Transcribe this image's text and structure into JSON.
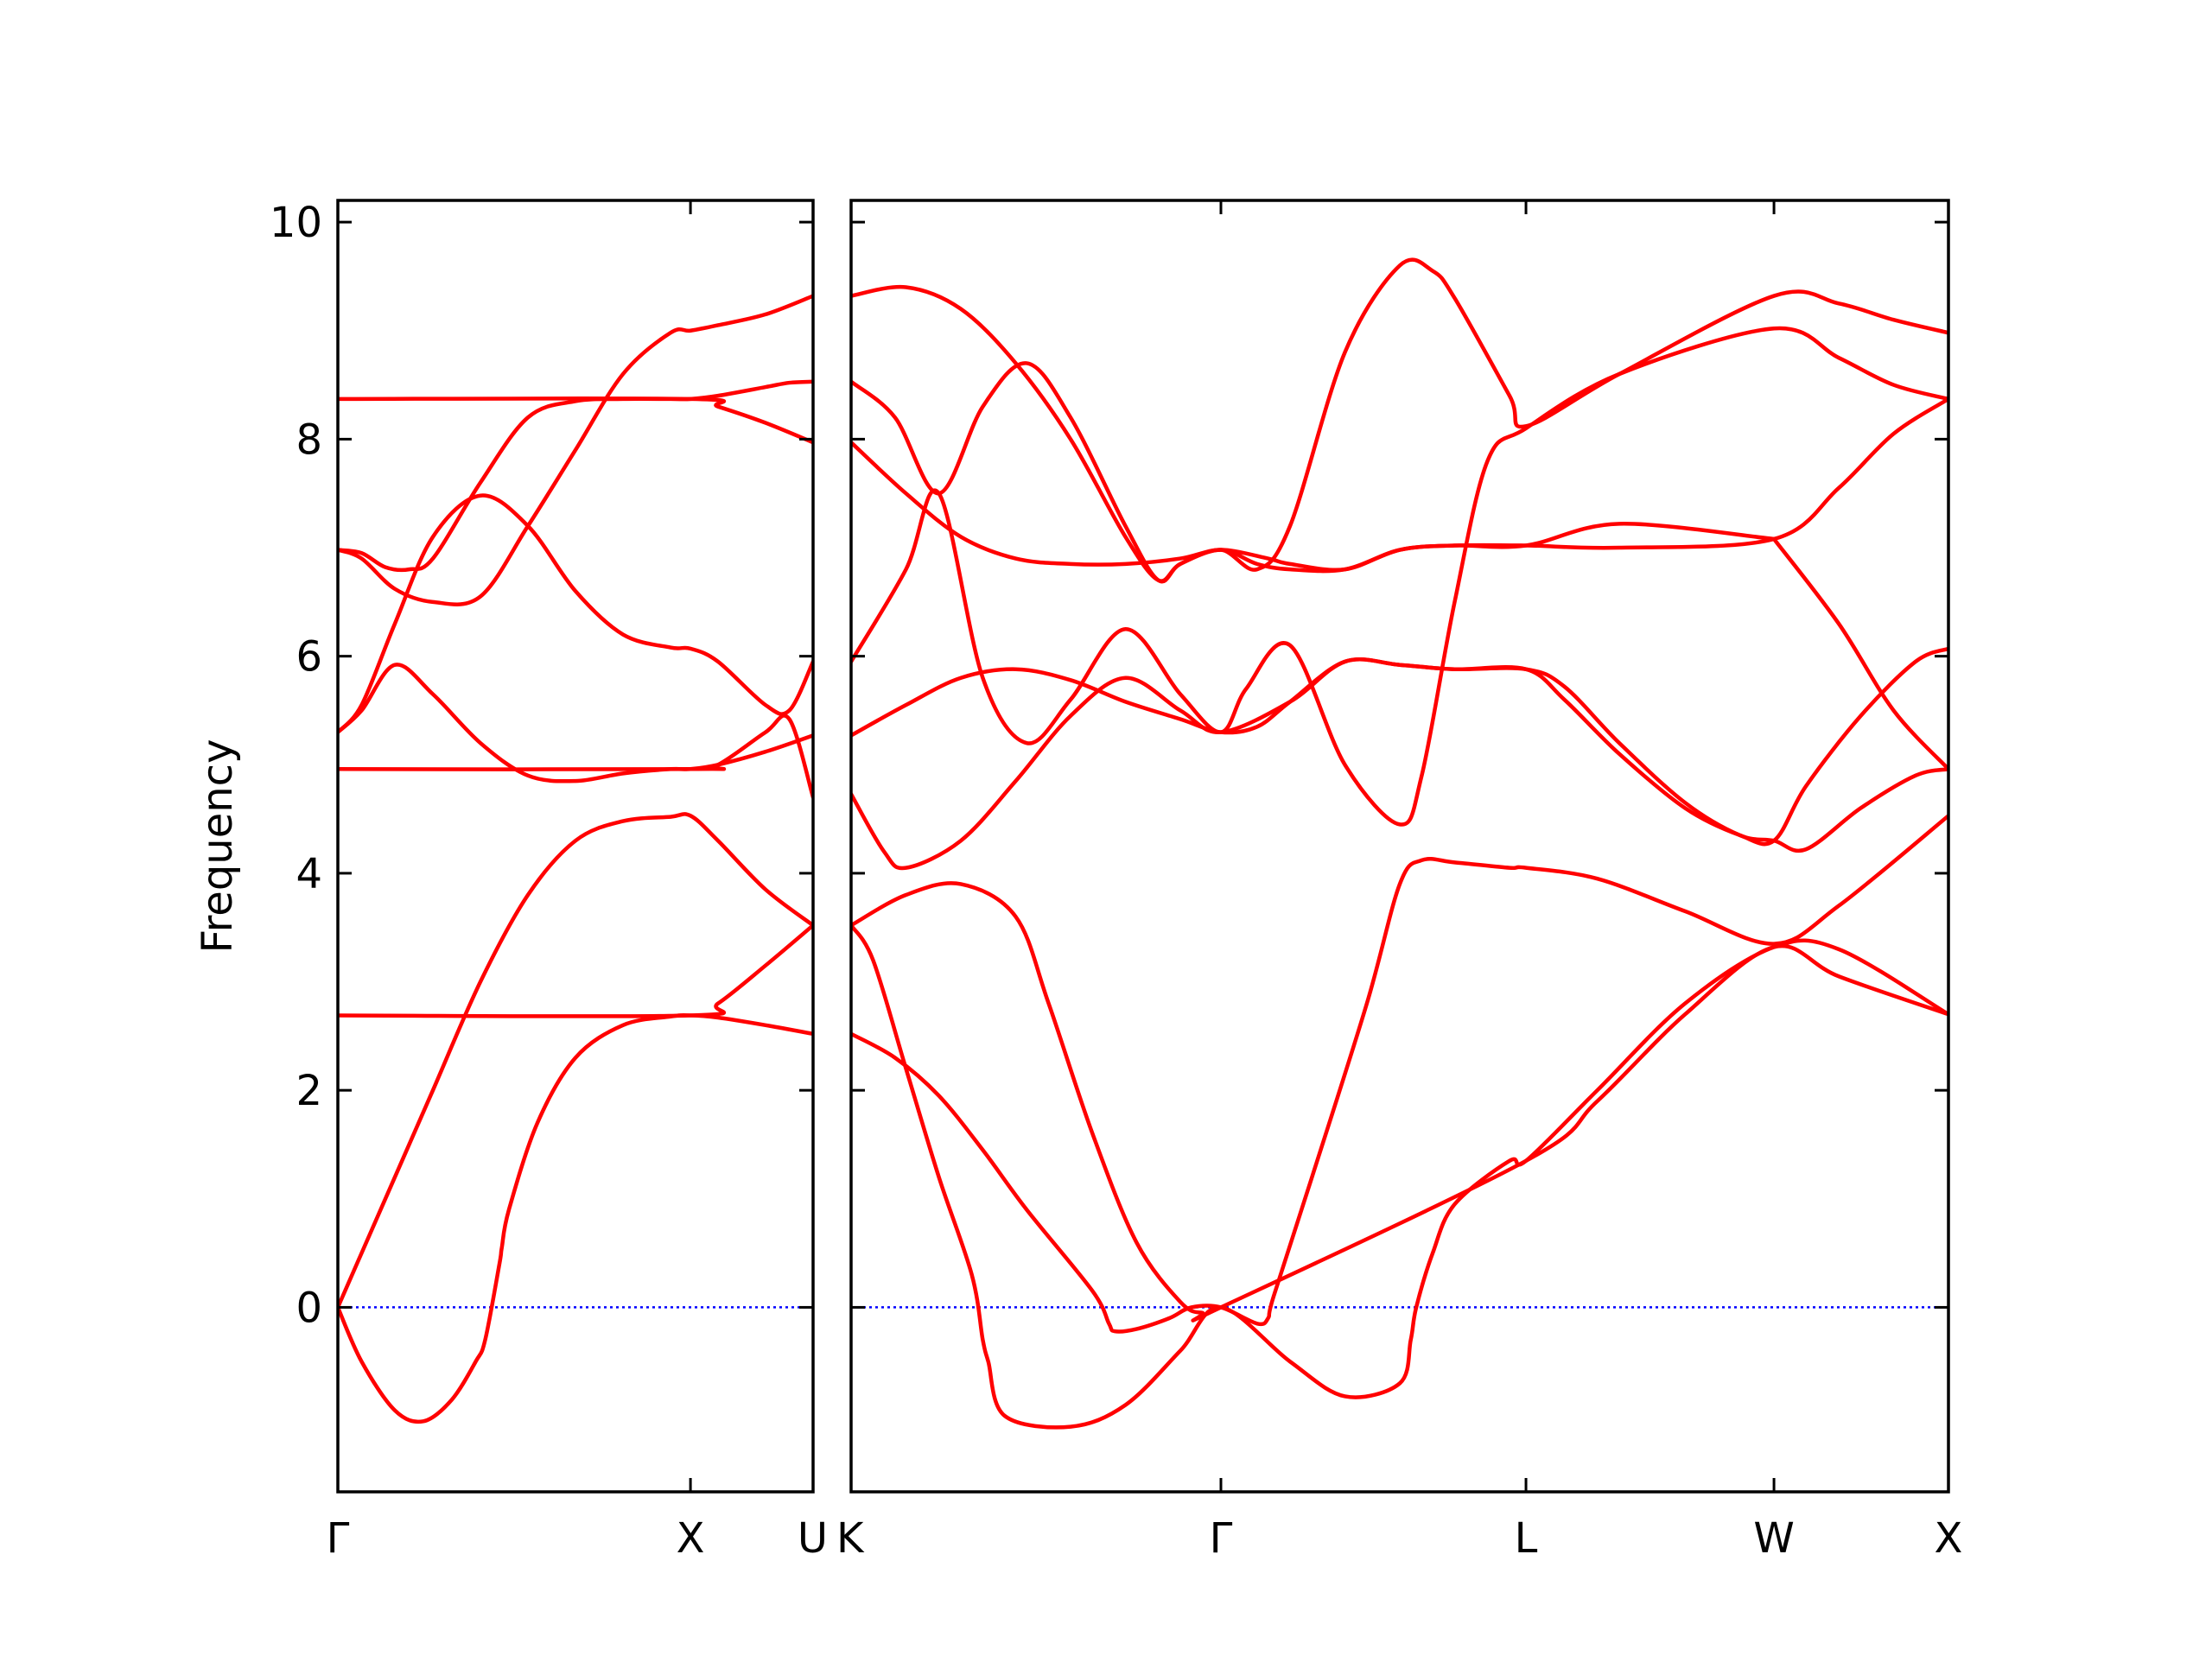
{
  "chart_data": {
    "type": "line",
    "title": "",
    "ylabel": "Frequency",
    "xlabel": "",
    "ylim": [
      -1.7,
      10.2
    ],
    "yticks": [
      0,
      2,
      4,
      6,
      8,
      10
    ],
    "grid": false,
    "legend": "none",
    "colors": {
      "band": "#ff0000",
      "zero_line": "#0000ff",
      "frame": "#000000"
    },
    "panels": [
      {
        "name": "Γ-X-U",
        "xlim": [
          0,
          1.0
        ],
        "ticks": [
          {
            "label": "Γ",
            "x": 0.0
          },
          {
            "label": "X",
            "x": 0.742
          },
          {
            "label": "U",
            "x": 1.0
          }
        ],
        "show_yticklabels": true,
        "bands": [
          {
            "name": "band-1",
            "x": [
              0,
              0.05,
              0.12,
              0.18,
              0.24,
              0.29,
              0.31,
              0.34,
              0.345,
              0.36,
              0.42,
              0.5,
              0.6,
              0.7,
              0.742,
              0.8,
              0.9,
              1.0
            ],
            "y": [
              0,
              -0.5,
              -0.95,
              -1.05,
              -0.85,
              -0.5,
              -0.3,
              0.4,
              0.55,
              0.9,
              1.7,
              2.3,
              2.6,
              2.68,
              2.69,
              2.67,
              2.6,
              2.52
            ]
          },
          {
            "name": "band-2",
            "x": [
              0,
              0.05,
              0.12,
              0.2,
              0.3,
              0.4,
              0.5,
              0.6,
              0.7,
              0.742,
              0.8,
              0.9,
              1.0
            ],
            "y": [
              0,
              0.5,
              1.2,
              2.0,
              3.0,
              3.8,
              4.3,
              4.48,
              4.52,
              4.53,
              4.3,
              3.85,
              3.52
            ]
          },
          {
            "name": "band-3",
            "x": [
              0,
              0.742,
              0.8,
              0.9,
              1.0
            ],
            "y": [
              2.69,
              2.69,
              2.8,
              3.15,
              3.52
            ]
          },
          {
            "name": "band-4",
            "x": [
              0,
              0.05,
              0.12,
              0.2,
              0.3,
              0.4,
              0.5,
              0.6,
              0.7,
              0.742,
              0.8,
              0.9,
              1.0
            ],
            "y": [
              5.3,
              5.5,
              5.92,
              5.65,
              5.2,
              4.9,
              4.85,
              4.92,
              4.96,
              4.96,
              5.0,
              5.12,
              5.27
            ]
          },
          {
            "name": "band-5",
            "x": [
              0,
              0.742,
              0.8,
              0.9,
              0.95,
              1.0
            ],
            "y": [
              4.96,
              4.96,
              5.0,
              5.3,
              5.42,
              4.7
            ]
          },
          {
            "name": "band-6",
            "x": [
              0,
              0.05,
              0.12,
              0.2,
              0.3,
              0.4,
              0.5,
              0.6,
              0.7,
              0.742,
              0.8,
              0.9,
              0.95,
              1.0
            ],
            "y": [
              5.3,
              5.55,
              6.3,
              7.1,
              7.48,
              7.2,
              6.6,
              6.2,
              6.08,
              6.07,
              5.95,
              5.55,
              5.5,
              5.95
            ]
          },
          {
            "name": "band-7",
            "x": [
              0,
              0.05,
              0.12,
              0.2,
              0.3,
              0.4,
              0.5,
              0.6,
              0.7,
              0.742,
              0.8,
              0.9,
              1.0
            ],
            "y": [
              6.98,
              6.9,
              6.62,
              6.5,
              6.55,
              7.2,
              7.9,
              8.6,
              8.98,
              9.0,
              9.05,
              9.15,
              9.32
            ]
          },
          {
            "name": "band-8",
            "x": [
              0,
              0.05,
              0.1,
              0.15,
              0.2,
              0.3,
              0.4,
              0.5,
              0.6,
              0.7,
              0.742,
              0.8,
              0.9,
              0.95,
              1.0
            ],
            "y": [
              6.98,
              6.95,
              6.82,
              6.8,
              6.9,
              7.6,
              8.2,
              8.35,
              8.37,
              8.37,
              8.37,
              8.4,
              8.48,
              8.52,
              8.53
            ]
          },
          {
            "name": "band-9",
            "x": [
              0,
              0.742,
              0.8,
              0.9,
              1.0
            ],
            "y": [
              8.37,
              8.37,
              8.3,
              8.15,
              7.97
            ]
          }
        ]
      },
      {
        "name": "K-Γ-L-W-X",
        "xlim": [
          0,
          1.0
        ],
        "ticks": [
          {
            "label": "K",
            "x": 0.0
          },
          {
            "label": "Γ",
            "x": 0.337
          },
          {
            "label": "L",
            "x": 0.615
          },
          {
            "label": "W",
            "x": 0.841
          },
          {
            "label": "X",
            "x": 1.0
          }
        ],
        "show_yticklabels": false,
        "bands": [
          {
            "name": "band-1",
            "x": [
              0,
              0.02,
              0.05,
              0.08,
              0.11,
              0.12,
              0.125,
              0.14,
              0.2,
              0.25,
              0.3,
              0.337,
              0.4,
              0.45,
              0.5,
              0.51,
              0.515,
              0.53,
              0.55,
              0.6,
              0.615,
              0.68,
              0.76,
              0.841,
              0.9,
              1.0
            ],
            "y": [
              3.52,
              3.2,
              2.2,
              1.2,
              0.3,
              -0.3,
              -0.5,
              -1.0,
              -1.1,
              -0.9,
              -0.4,
              0,
              -0.5,
              -0.82,
              -0.7,
              -0.3,
              0.0,
              0.5,
              0.95,
              1.35,
              1.35,
              2.0,
              2.8,
              3.32,
              3.3,
              2.7
            ]
          },
          {
            "name": "band-2",
            "x": [
              0,
              0.04,
              0.08,
              0.12,
              0.16,
              0.22,
              0.235,
              0.24,
              0.26,
              0.29,
              0.31,
              0.337,
              0.37,
              0.38,
              0.385,
              0.42,
              0.47,
              0.5,
              0.52,
              0.55,
              0.6,
              0.615,
              0.68,
              0.76,
              0.841,
              0.9,
              1.0
            ],
            "y": [
              2.52,
              2.3,
              1.95,
              1.45,
              0.9,
              0.15,
              -0.15,
              -0.22,
              -0.2,
              -0.1,
              0.0,
              0,
              -0.15,
              -0.1,
              0.1,
              1.2,
              2.8,
              3.9,
              4.12,
              4.1,
              4.05,
              4.05,
              3.95,
              3.65,
              3.35,
              3.7,
              4.53
            ]
          },
          {
            "name": "band-3",
            "x": [
              0,
              0.05,
              0.1,
              0.15,
              0.18,
              0.22,
              0.26,
              0.3,
              0.32,
              0.337,
              0.615,
              0.68,
              0.76,
              0.841,
              0.9,
              1.0
            ],
            "y": [
              3.52,
              3.8,
              3.9,
              3.6,
              2.8,
              1.6,
              0.6,
              0.05,
              -0.05,
              0,
              1.35,
              1.9,
              2.7,
              3.32,
              3.05,
              2.7
            ]
          },
          {
            "name": "band-4",
            "x": [
              0,
              0.03,
              0.05,
              0.1,
              0.15,
              0.2,
              0.25,
              0.3,
              0.337,
              0.4,
              0.45,
              0.5,
              0.55,
              0.615,
              0.65,
              0.7,
              0.76,
              0.81,
              0.841,
              0.87,
              0.92,
              0.97,
              1.0
            ],
            "y": [
              4.73,
              4.2,
              4.05,
              4.3,
              4.85,
              5.45,
              5.8,
              5.5,
              5.3,
              5.58,
              5.95,
              5.92,
              5.88,
              5.88,
              5.72,
              5.2,
              4.65,
              4.35,
              4.3,
              4.22,
              4.6,
              4.9,
              4.96
            ]
          },
          {
            "name": "band-5",
            "x": [
              0,
              0.05,
              0.1,
              0.15,
              0.2,
              0.25,
              0.3,
              0.337,
              0.37,
              0.4,
              0.45,
              0.5,
              0.55,
              0.615,
              0.65,
              0.7,
              0.76,
              0.81,
              0.841,
              0.87,
              0.92,
              0.97,
              1.0
            ],
            "y": [
              5.27,
              5.55,
              5.8,
              5.88,
              5.78,
              5.58,
              5.42,
              5.3,
              5.35,
              5.58,
              5.95,
              5.92,
              5.88,
              5.88,
              5.6,
              5.1,
              4.6,
              4.35,
              4.3,
              4.8,
              5.45,
              5.95,
              6.07
            ]
          },
          {
            "name": "band-6",
            "x": [
              0,
              0.05,
              0.08,
              0.12,
              0.16,
              0.2,
              0.25,
              0.3,
              0.337,
              0.36,
              0.4,
              0.45,
              0.5,
              0.52,
              0.55,
              0.58,
              0.615,
              0.7,
              0.841,
              0.9,
              0.95,
              1.0
            ],
            "y": [
              5.95,
              6.8,
              7.5,
              5.8,
              5.2,
              5.6,
              6.25,
              5.65,
              5.3,
              5.7,
              6.1,
              5.0,
              4.45,
              4.9,
              6.5,
              7.8,
              8.1,
              8.6,
              9.02,
              8.75,
              8.5,
              8.37
            ]
          },
          {
            "name": "band-7",
            "x": [
              0,
              0.05,
              0.1,
              0.15,
              0.2,
              0.25,
              0.3,
              0.337,
              0.38,
              0.4,
              0.45,
              0.5,
              0.55,
              0.615,
              0.7,
              0.841,
              0.9,
              0.95,
              1.0
            ],
            "y": [
              7.97,
              7.5,
              7.1,
              6.9,
              6.85,
              6.85,
              6.9,
              6.98,
              6.9,
              6.85,
              6.8,
              6.98,
              7.02,
              7.02,
              7.0,
              7.08,
              7.55,
              8.05,
              8.37
            ]
          },
          {
            "name": "band-8",
            "x": [
              0,
              0.04,
              0.08,
              0.12,
              0.16,
              0.2,
              0.25,
              0.28,
              0.3,
              0.337,
              0.37,
              0.4,
              0.45,
              0.5,
              0.55,
              0.615,
              0.7,
              0.841
            ],
            "y": [
              8.53,
              8.2,
              7.5,
              8.3,
              8.7,
              8.2,
              7.2,
              6.7,
              6.85,
              6.98,
              6.85,
              6.8,
              6.8,
              6.98,
              7.02,
              7.02,
              7.22,
              7.08
            ]
          },
          {
            "name": "band-9",
            "x": [
              0,
              0.05,
              0.1,
              0.15,
              0.2,
              0.25,
              0.28,
              0.3,
              0.337,
              0.37,
              0.4,
              0.45,
              0.5,
              0.53,
              0.55,
              0.6,
              0.615,
              0.7,
              0.841,
              0.9,
              0.95,
              1.0
            ],
            "y": [
              9.32,
              9.4,
              9.2,
              8.7,
              8.0,
              7.1,
              6.7,
              6.85,
              6.98,
              6.8,
              7.2,
              8.8,
              9.6,
              9.55,
              9.3,
              8.4,
              8.12,
              8.6,
              9.32,
              9.25,
              9.1,
              8.98
            ]
          },
          {
            "name": "band-10",
            "x": [
              0.841,
              0.9,
              0.95,
              1.0
            ],
            "y": [
              7.08,
              6.3,
              5.5,
              4.96
            ]
          }
        ]
      }
    ]
  }
}
